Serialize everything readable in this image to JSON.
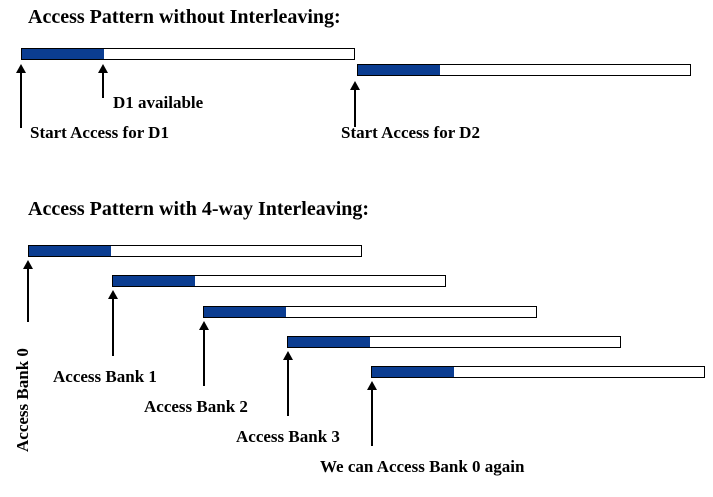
{
  "section1": {
    "title": "Access Pattern without Interleaving:",
    "d1_available": "D1 available",
    "start_d1": "Start Access for D1",
    "start_d2": "Start Access for D2"
  },
  "section2": {
    "title": "Access Pattern with 4-way Interleaving:",
    "bank0": "Access Bank 0",
    "bank1": "Access Bank 1",
    "bank2": "Access Bank 2",
    "bank3": "Access Bank 3",
    "again": "We can Access Bank 0 again"
  },
  "colors": {
    "fill": "#0b3d91"
  }
}
